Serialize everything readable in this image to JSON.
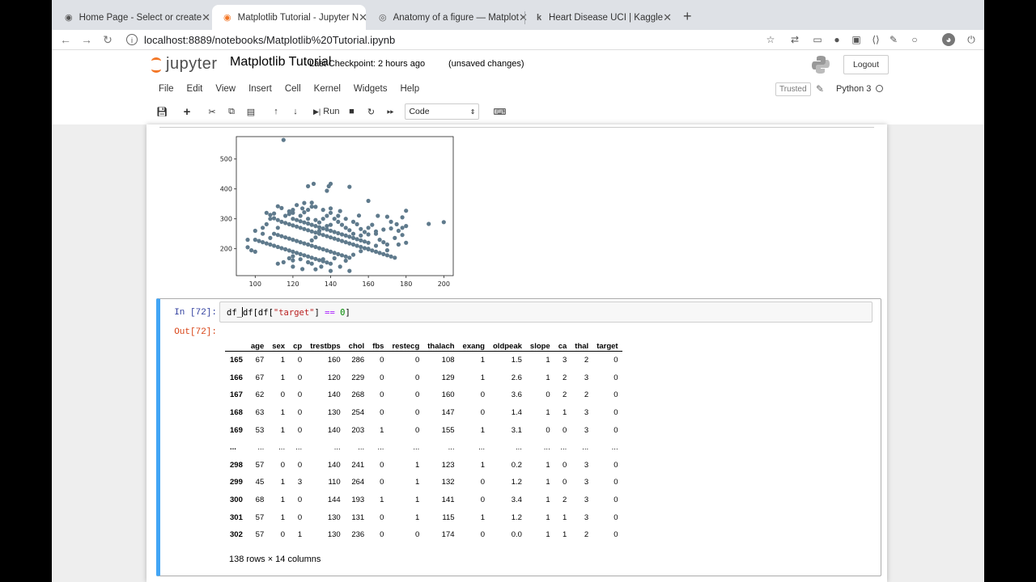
{
  "browser": {
    "tabs": [
      {
        "title": "Home Page - Select or create",
        "favicon": "jupyter-icon",
        "active": false
      },
      {
        "title": "Matplotlib Tutorial - Jupyter N",
        "favicon": "jupyter-icon",
        "active": true
      },
      {
        "title": "Anatomy of a figure — Matplot",
        "favicon": "matplotlib-icon",
        "active": false
      },
      {
        "title": "Heart Disease UCI | Kaggle",
        "favicon": "kaggle-icon",
        "active": false
      }
    ],
    "close_glyph": "✕",
    "new_tab_glyph": "+",
    "url": "localhost:8889/notebooks/Matplotlib%20Tutorial.ipynb"
  },
  "jupyter": {
    "logo_text": "jupyter",
    "notebook_name": "Matplotlib Tutorial",
    "checkpoint": "Last Checkpoint: 2 hours ago",
    "status": "(unsaved changes)",
    "logout_label": "Logout",
    "menu": [
      "File",
      "Edit",
      "View",
      "Insert",
      "Cell",
      "Kernel",
      "Widgets",
      "Help"
    ],
    "trusted_label": "Trusted",
    "kernel_name": "Python 3",
    "toolbar": {
      "run_label": "Run",
      "cell_type": "Code"
    }
  },
  "chart_data": {
    "type": "scatter",
    "title": "",
    "xlabel": "",
    "ylabel": "",
    "xlim": [
      90,
      205
    ],
    "ylim": [
      110,
      575
    ],
    "xticks": [
      100,
      120,
      140,
      160,
      180,
      200
    ],
    "yticks": [
      200,
      300,
      400,
      500
    ],
    "color": "#5f7a8c",
    "points": [
      [
        115,
        564
      ],
      [
        131,
        417
      ],
      [
        139,
        409
      ],
      [
        140,
        417
      ],
      [
        128,
        409
      ],
      [
        138,
        394
      ],
      [
        150,
        407
      ],
      [
        160,
        360
      ],
      [
        130,
        354
      ],
      [
        126,
        353
      ],
      [
        112,
        342
      ],
      [
        120,
        330
      ],
      [
        118,
        325
      ],
      [
        125,
        335
      ],
      [
        130,
        341
      ],
      [
        140,
        335
      ],
      [
        145,
        326
      ],
      [
        155,
        311
      ],
      [
        165,
        310
      ],
      [
        170,
        307
      ],
      [
        172,
        290
      ],
      [
        178,
        305
      ],
      [
        180,
        327
      ],
      [
        175,
        282
      ],
      [
        180,
        276
      ],
      [
        178,
        270
      ],
      [
        192,
        283
      ],
      [
        200,
        289
      ],
      [
        106,
        320
      ],
      [
        108,
        313
      ],
      [
        110,
        302
      ],
      [
        112,
        296
      ],
      [
        114,
        290
      ],
      [
        116,
        286
      ],
      [
        118,
        282
      ],
      [
        120,
        278
      ],
      [
        122,
        274
      ],
      [
        124,
        270
      ],
      [
        126,
        266
      ],
      [
        128,
        262
      ],
      [
        130,
        258
      ],
      [
        132,
        254
      ],
      [
        134,
        250
      ],
      [
        136,
        246
      ],
      [
        138,
        242
      ],
      [
        140,
        238
      ],
      [
        142,
        234
      ],
      [
        144,
        230
      ],
      [
        146,
        226
      ],
      [
        148,
        222
      ],
      [
        150,
        218
      ],
      [
        152,
        214
      ],
      [
        154,
        210
      ],
      [
        156,
        206
      ],
      [
        158,
        202
      ],
      [
        160,
        198
      ],
      [
        162,
        194
      ],
      [
        164,
        190
      ],
      [
        166,
        186
      ],
      [
        168,
        182
      ],
      [
        170,
        178
      ],
      [
        172,
        174
      ],
      [
        174,
        170
      ],
      [
        120,
        300
      ],
      [
        122,
        296
      ],
      [
        124,
        292
      ],
      [
        126,
        288
      ],
      [
        128,
        284
      ],
      [
        130,
        280
      ],
      [
        132,
        276
      ],
      [
        134,
        272
      ],
      [
        136,
        268
      ],
      [
        138,
        264
      ],
      [
        140,
        260
      ],
      [
        142,
        256
      ],
      [
        144,
        252
      ],
      [
        146,
        248
      ],
      [
        148,
        244
      ],
      [
        150,
        240
      ],
      [
        152,
        236
      ],
      [
        154,
        232
      ],
      [
        156,
        228
      ],
      [
        158,
        224
      ],
      [
        160,
        220
      ],
      [
        110,
        250
      ],
      [
        112,
        246
      ],
      [
        114,
        242
      ],
      [
        116,
        238
      ],
      [
        118,
        234
      ],
      [
        120,
        230
      ],
      [
        122,
        226
      ],
      [
        124,
        222
      ],
      [
        126,
        218
      ],
      [
        128,
        214
      ],
      [
        130,
        210
      ],
      [
        132,
        206
      ],
      [
        134,
        202
      ],
      [
        136,
        198
      ],
      [
        138,
        194
      ],
      [
        140,
        190
      ],
      [
        142,
        186
      ],
      [
        144,
        182
      ],
      [
        146,
        178
      ],
      [
        148,
        174
      ],
      [
        150,
        170
      ],
      [
        100,
        230
      ],
      [
        102,
        226
      ],
      [
        104,
        222
      ],
      [
        106,
        218
      ],
      [
        108,
        214
      ],
      [
        110,
        210
      ],
      [
        112,
        206
      ],
      [
        114,
        202
      ],
      [
        116,
        198
      ],
      [
        118,
        194
      ],
      [
        120,
        190
      ],
      [
        122,
        186
      ],
      [
        124,
        182
      ],
      [
        126,
        178
      ],
      [
        128,
        174
      ],
      [
        130,
        170
      ],
      [
        132,
        166
      ],
      [
        134,
        162
      ],
      [
        136,
        158
      ],
      [
        138,
        154
      ],
      [
        140,
        150
      ],
      [
        96,
        230
      ],
      [
        96,
        205
      ],
      [
        98,
        195
      ],
      [
        100,
        260
      ],
      [
        104,
        270
      ],
      [
        106,
        282
      ],
      [
        108,
        300
      ],
      [
        110,
        318
      ],
      [
        114,
        336
      ],
      [
        118,
        316
      ],
      [
        122,
        346
      ],
      [
        126,
        322
      ],
      [
        128,
        300
      ],
      [
        132,
        296
      ],
      [
        134,
        288
      ],
      [
        136,
        300
      ],
      [
        138,
        310
      ],
      [
        142,
        300
      ],
      [
        144,
        290
      ],
      [
        146,
        280
      ],
      [
        148,
        270
      ],
      [
        150,
        262
      ],
      [
        152,
        290
      ],
      [
        154,
        282
      ],
      [
        156,
        266
      ],
      [
        158,
        256
      ],
      [
        160,
        270
      ],
      [
        162,
        280
      ],
      [
        164,
        250
      ],
      [
        166,
        230
      ],
      [
        168,
        222
      ],
      [
        170,
        214
      ],
      [
        174,
        236
      ],
      [
        176,
        214
      ],
      [
        178,
        246
      ],
      [
        120,
        161
      ],
      [
        118,
        168
      ],
      [
        112,
        150
      ],
      [
        115,
        155
      ],
      [
        120,
        140
      ],
      [
        125,
        132
      ],
      [
        132,
        131
      ],
      [
        150,
        126
      ],
      [
        140,
        126
      ],
      [
        145,
        140
      ],
      [
        135,
        140
      ],
      [
        130,
        150
      ],
      [
        128,
        155
      ],
      [
        120,
        175
      ],
      [
        124,
        165
      ],
      [
        136,
        165
      ],
      [
        142,
        168
      ],
      [
        148,
        160
      ],
      [
        152,
        180
      ],
      [
        156,
        192
      ],
      [
        160,
        200
      ],
      [
        164,
        210
      ],
      [
        170,
        195
      ],
      [
        180,
        220
      ],
      [
        100,
        190
      ],
      [
        104,
        250
      ],
      [
        108,
        236
      ],
      [
        112,
        270
      ],
      [
        116,
        310
      ],
      [
        120,
        320
      ],
      [
        124,
        310
      ],
      [
        128,
        330
      ],
      [
        132,
        340
      ],
      [
        136,
        330
      ],
      [
        140,
        320
      ],
      [
        144,
        310
      ],
      [
        148,
        300
      ],
      [
        152,
        250
      ],
      [
        156,
        244
      ],
      [
        160,
        248
      ],
      [
        164,
        258
      ],
      [
        168,
        264
      ],
      [
        172,
        268
      ],
      [
        176,
        260
      ],
      [
        140,
        280
      ],
      [
        138,
        276
      ],
      [
        134,
        260
      ],
      [
        132,
        238
      ],
      [
        130,
        228
      ]
    ]
  },
  "cell": {
    "in_prompt": "In [72]:",
    "out_prompt": "Out[72]:",
    "code": {
      "a": "df_",
      "b": "df[df[",
      "str": "\"target\"",
      "c": "] ",
      "op": "==",
      "d": " ",
      "num": "0",
      "e": "]"
    },
    "table": {
      "columns": [
        "age",
        "sex",
        "cp",
        "trestbps",
        "chol",
        "fbs",
        "restecg",
        "thalach",
        "exang",
        "oldpeak",
        "slope",
        "ca",
        "thal",
        "target"
      ],
      "rows": [
        {
          "index": "165",
          "values": [
            "67",
            "1",
            "0",
            "160",
            "286",
            "0",
            "0",
            "108",
            "1",
            "1.5",
            "1",
            "3",
            "2",
            "0"
          ]
        },
        {
          "index": "166",
          "values": [
            "67",
            "1",
            "0",
            "120",
            "229",
            "0",
            "0",
            "129",
            "1",
            "2.6",
            "1",
            "2",
            "3",
            "0"
          ]
        },
        {
          "index": "167",
          "values": [
            "62",
            "0",
            "0",
            "140",
            "268",
            "0",
            "0",
            "160",
            "0",
            "3.6",
            "0",
            "2",
            "2",
            "0"
          ]
        },
        {
          "index": "168",
          "values": [
            "63",
            "1",
            "0",
            "130",
            "254",
            "0",
            "0",
            "147",
            "0",
            "1.4",
            "1",
            "1",
            "3",
            "0"
          ]
        },
        {
          "index": "169",
          "values": [
            "53",
            "1",
            "0",
            "140",
            "203",
            "1",
            "0",
            "155",
            "1",
            "3.1",
            "0",
            "0",
            "3",
            "0"
          ]
        },
        {
          "index": "...",
          "values": [
            "...",
            "...",
            "...",
            "...",
            "...",
            "...",
            "...",
            "...",
            "...",
            "...",
            "...",
            "...",
            "...",
            "..."
          ]
        },
        {
          "index": "298",
          "values": [
            "57",
            "0",
            "0",
            "140",
            "241",
            "0",
            "1",
            "123",
            "1",
            "0.2",
            "1",
            "0",
            "3",
            "0"
          ]
        },
        {
          "index": "299",
          "values": [
            "45",
            "1",
            "3",
            "110",
            "264",
            "0",
            "1",
            "132",
            "0",
            "1.2",
            "1",
            "0",
            "3",
            "0"
          ]
        },
        {
          "index": "300",
          "values": [
            "68",
            "1",
            "0",
            "144",
            "193",
            "1",
            "1",
            "141",
            "0",
            "3.4",
            "1",
            "2",
            "3",
            "0"
          ]
        },
        {
          "index": "301",
          "values": [
            "57",
            "1",
            "0",
            "130",
            "131",
            "0",
            "1",
            "115",
            "1",
            "1.2",
            "1",
            "1",
            "3",
            "0"
          ]
        },
        {
          "index": "302",
          "values": [
            "57",
            "0",
            "1",
            "130",
            "236",
            "0",
            "0",
            "174",
            "0",
            "0.0",
            "1",
            "1",
            "2",
            "0"
          ]
        }
      ]
    },
    "summary": "138 rows × 14 columns"
  }
}
